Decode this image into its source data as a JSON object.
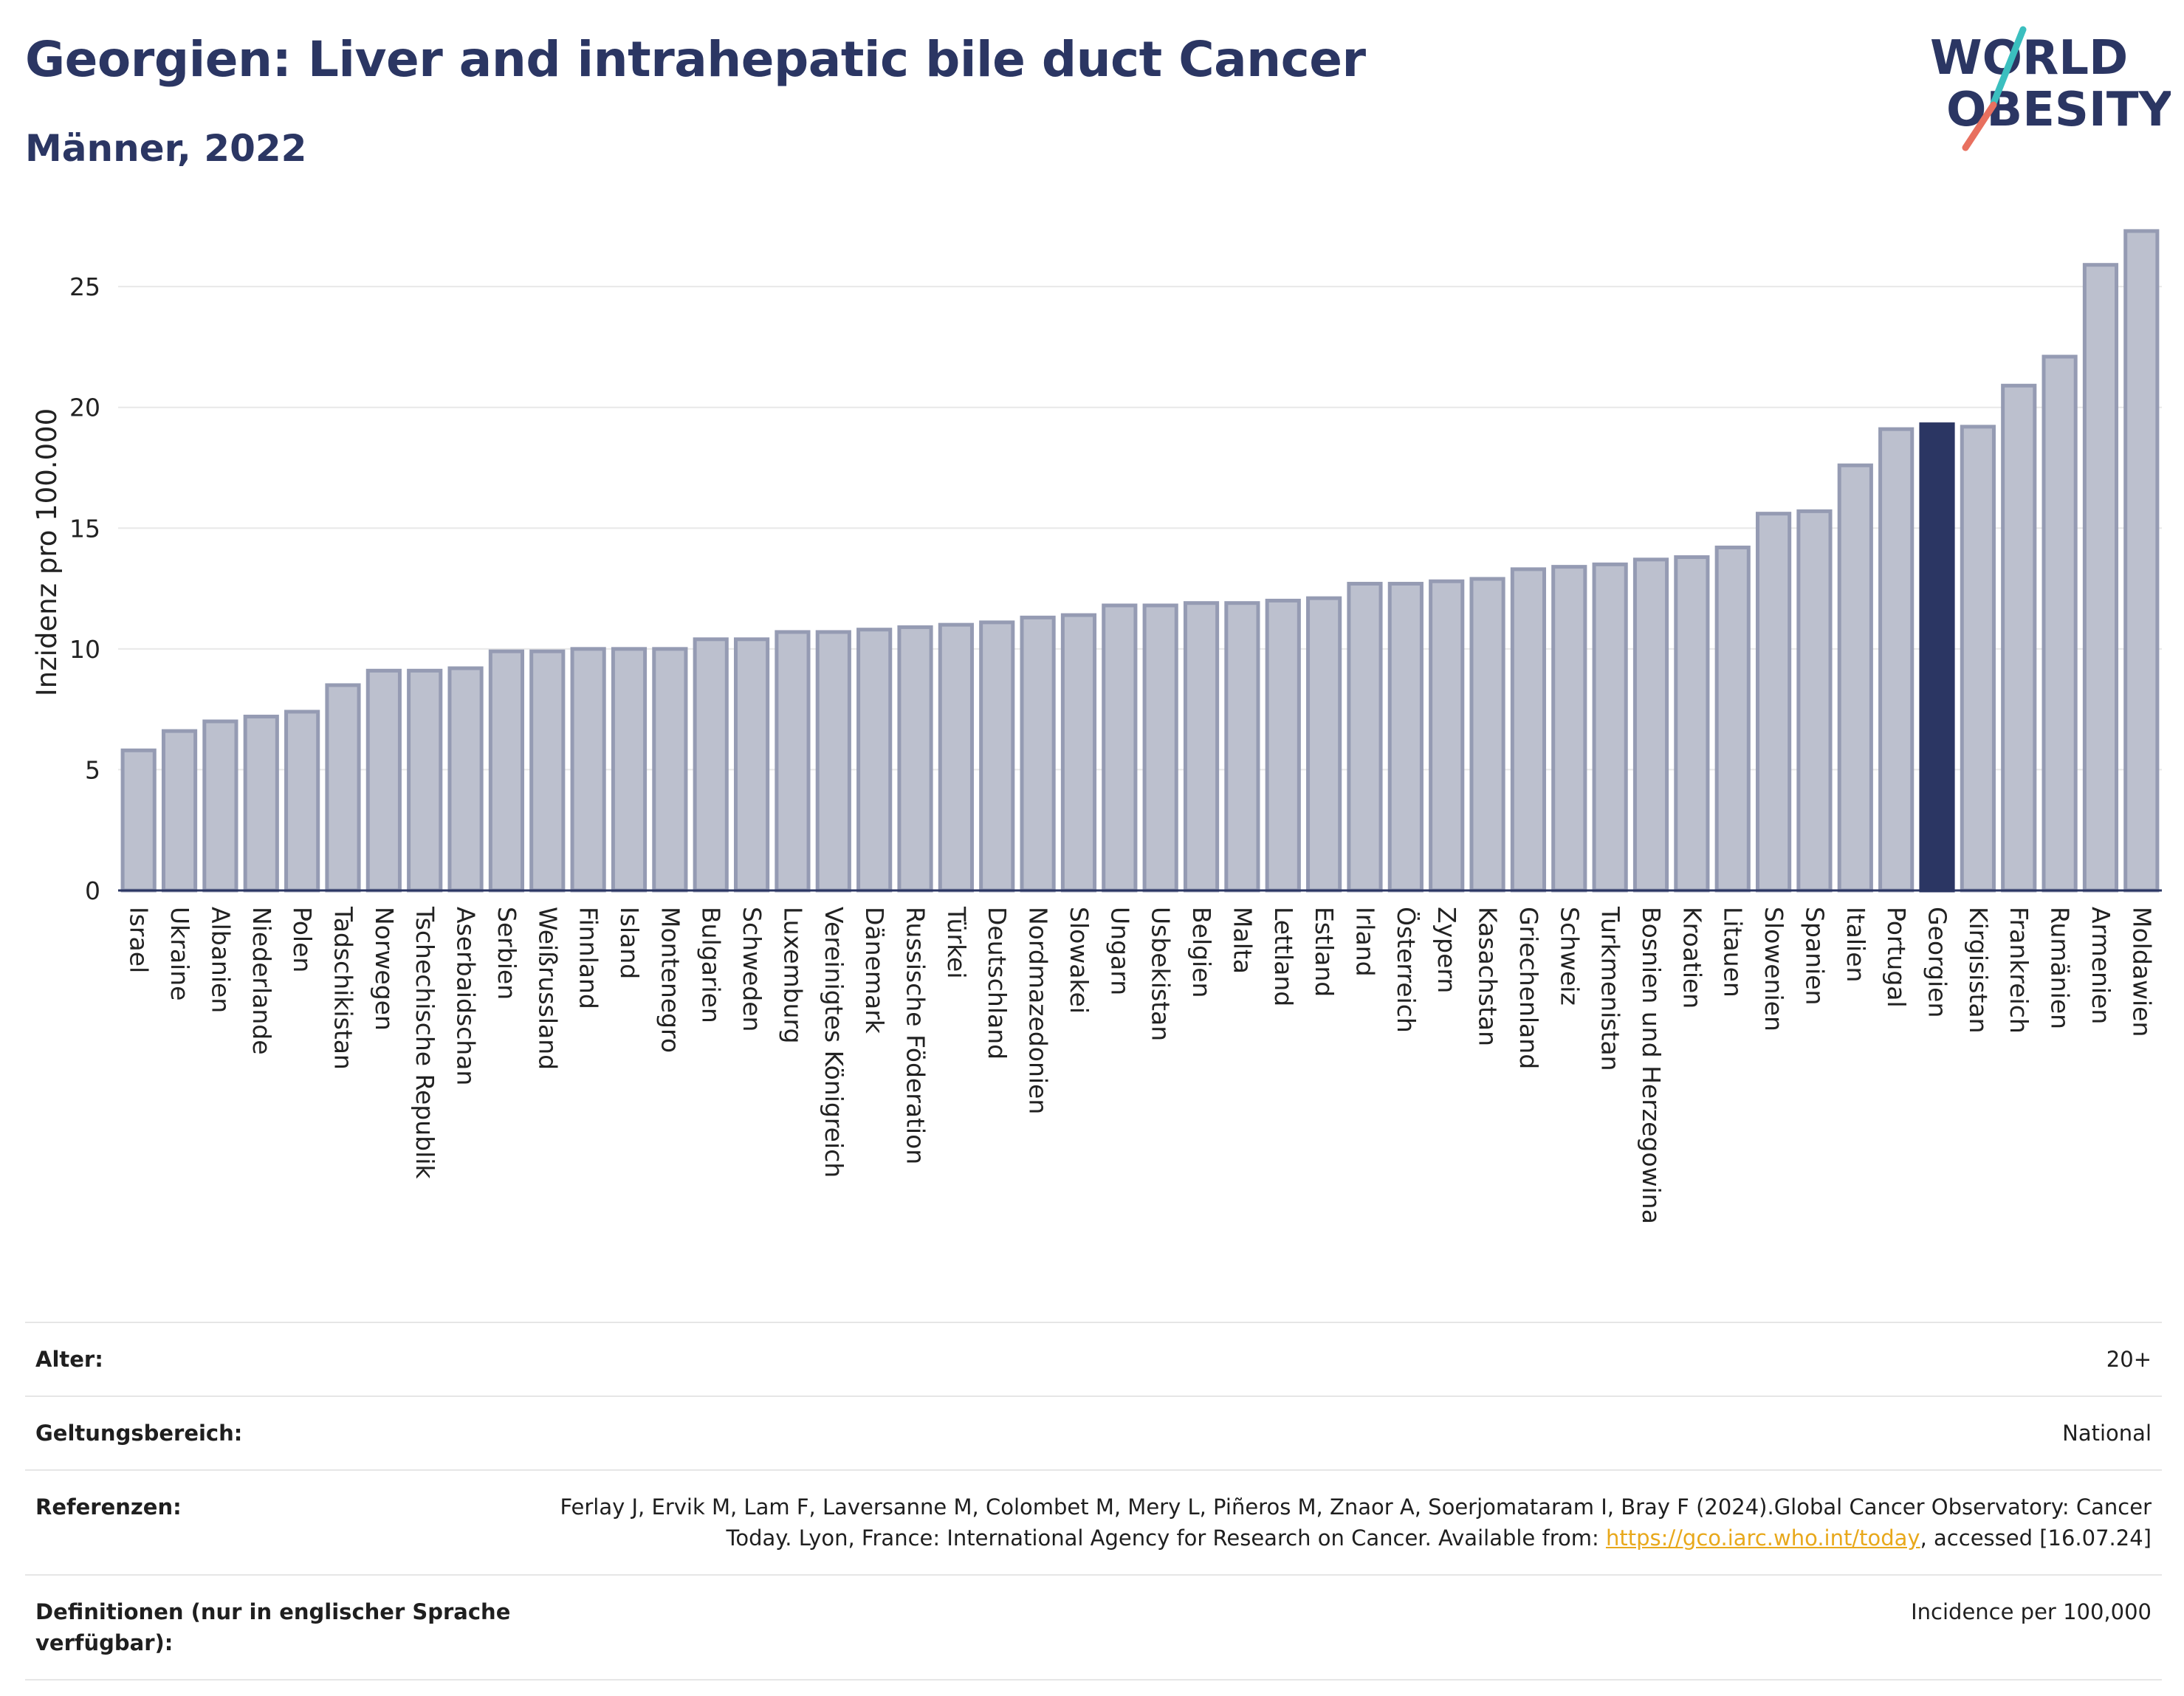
{
  "title": "Georgien: Liver and intrahepatic bile duct Cancer",
  "subtitle": "Männer, 2022",
  "logo": {
    "line1": "WORLD",
    "line2": "OBESITY",
    "accent_teal": "#3bbfbf",
    "accent_coral": "#e8705f"
  },
  "chart_data": {
    "type": "bar",
    "ylabel": "Inzidenz pro 100.000",
    "ylim": [
      0,
      28
    ],
    "yticks": [
      0,
      5,
      10,
      15,
      20,
      25
    ],
    "grid": true,
    "highlight": "Georgien",
    "bar_color": "#bcc0ce",
    "bar_edge_color": "#959bb3",
    "highlight_color": "#2b3663",
    "categories": [
      "Israel",
      "Ukraine",
      "Albanien",
      "Niederlande",
      "Polen",
      "Tadschikistan",
      "Norwegen",
      "Tschechische Republik",
      "Aserbaidschan",
      "Serbien",
      "Weißrussland",
      "Finnland",
      "Island",
      "Montenegro",
      "Bulgarien",
      "Schweden",
      "Luxemburg",
      "Vereinigtes Königreich",
      "Dänemark",
      "Russische Föderation",
      "Türkei",
      "Deutschland",
      "Nordmazedonien",
      "Slowakei",
      "Ungarn",
      "Usbekistan",
      "Belgien",
      "Malta",
      "Lettland",
      "Estland",
      "Irland",
      "Österreich",
      "Zypern",
      "Kasachstan",
      "Griechenland",
      "Schweiz",
      "Turkmenistan",
      "Bosnien und Herzegowina",
      "Kroatien",
      "Litauen",
      "Slowenien",
      "Spanien",
      "Italien",
      "Portugal",
      "Georgien",
      "Kirgisistan",
      "Frankreich",
      "Rumänien",
      "Armenien",
      "Moldawien"
    ],
    "values": [
      5.8,
      6.6,
      7.0,
      7.2,
      7.4,
      8.5,
      9.1,
      9.1,
      9.2,
      9.9,
      9.9,
      10.0,
      10.0,
      10.0,
      10.4,
      10.4,
      10.7,
      10.7,
      10.8,
      10.9,
      11.0,
      11.1,
      11.3,
      11.4,
      11.8,
      11.8,
      11.9,
      11.9,
      12.0,
      12.1,
      12.7,
      12.7,
      12.8,
      12.9,
      13.3,
      13.4,
      13.5,
      13.7,
      13.8,
      14.2,
      15.6,
      15.7,
      17.6,
      19.1,
      19.3,
      19.2,
      20.9,
      22.1,
      25.9,
      27.3
    ]
  },
  "meta": {
    "rows": [
      {
        "key": "Alter:",
        "value": "20+"
      },
      {
        "key": "Geltungsbereich:",
        "value": "National"
      },
      {
        "key": "Referenzen:",
        "value_pre": "Ferlay J, Ervik M, Lam F, Laversanne M, Colombet M, Mery L, Piñeros M, Znaor A, Soerjomataram I, Bray F (2024).Global Cancer Observatory: Cancer Today. Lyon, France: International Agency for Research on Cancer. Available from: ",
        "link": "https://gco.iarc.who.int/today",
        "value_post": ", accessed [16.07.24]"
      },
      {
        "key": "Definitionen (nur in englischer Sprache verfügbar):",
        "value": "Incidence per 100,000"
      }
    ]
  }
}
